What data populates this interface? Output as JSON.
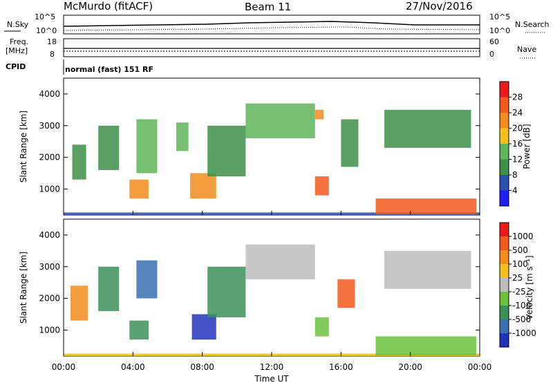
{
  "header": {
    "station": "McMurdo (fitACF)",
    "beam": "Beam 11",
    "date": "27/Nov/2016"
  },
  "summary_panels": {
    "nsky_label": "N.Sky",
    "nsearch_label": "N.Search",
    "noise_ticks_left": [
      "10^5",
      "10^0"
    ],
    "noise_ticks_right": [
      "10^5",
      "10^0"
    ],
    "freq_label_line1": "Freq.",
    "freq_label_line2": "[MHz]",
    "freq_ticks": [
      "18",
      "8"
    ],
    "nave_label": "Nave",
    "nave_ticks": [
      "60",
      "0"
    ],
    "cpid_label": "CPID",
    "cpid_text": "normal (fast) 151 RF"
  },
  "chart_data": [
    {
      "type": "heatmap",
      "name": "power",
      "ylabel": "Slant Range [km]",
      "xlabel": "Time UT",
      "x_ticks": [
        "00:00",
        "04:00",
        "08:00",
        "12:00",
        "16:00",
        "20:00",
        "00:00"
      ],
      "xlim": [
        0,
        24
      ],
      "ylim": [
        180,
        4500
      ],
      "y_ticks": [
        1000,
        2000,
        3000,
        4000
      ],
      "colorbar": {
        "label": "Power [dB]",
        "ticks": [
          "4",
          "8",
          "12",
          "16",
          "20",
          "24",
          "28"
        ],
        "colors": [
          "#1f1ff2",
          "#2d4fb0",
          "#3d8f4a",
          "#5fb55a",
          "#f2c21c",
          "#f28c1c",
          "#f2591c",
          "#e81a1a"
        ]
      },
      "regions": [
        {
          "t0": 0.0,
          "t1": 24.0,
          "r0": 180,
          "r1": 260,
          "level": 1
        },
        {
          "t0": 0.5,
          "t1": 1.3,
          "r0": 1300,
          "r1": 2400,
          "level": 2
        },
        {
          "t0": 2.0,
          "t1": 3.2,
          "r0": 1600,
          "r1": 3000,
          "level": 2
        },
        {
          "t0": 3.8,
          "t1": 4.9,
          "r0": 700,
          "r1": 1300,
          "level": 5
        },
        {
          "t0": 4.2,
          "t1": 5.4,
          "r0": 1500,
          "r1": 3200,
          "level": 3
        },
        {
          "t0": 6.5,
          "t1": 7.2,
          "r0": 2200,
          "r1": 3100,
          "level": 3
        },
        {
          "t0": 7.3,
          "t1": 8.8,
          "r0": 700,
          "r1": 1500,
          "level": 5
        },
        {
          "t0": 8.3,
          "t1": 10.5,
          "r0": 1400,
          "r1": 3000,
          "level": 2
        },
        {
          "t0": 10.5,
          "t1": 14.5,
          "r0": 2600,
          "r1": 3700,
          "level": 3
        },
        {
          "t0": 14.5,
          "t1": 15.3,
          "r0": 800,
          "r1": 1400,
          "level": 6
        },
        {
          "t0": 14.5,
          "t1": 15.0,
          "r0": 3200,
          "r1": 3500,
          "level": 5
        },
        {
          "t0": 16.0,
          "t1": 17.0,
          "r0": 1700,
          "r1": 3200,
          "level": 2
        },
        {
          "t0": 18.0,
          "t1": 23.8,
          "r0": 200,
          "r1": 700,
          "level": 6
        },
        {
          "t0": 18.5,
          "t1": 23.5,
          "r0": 2300,
          "r1": 3500,
          "level": 2
        }
      ]
    },
    {
      "type": "heatmap",
      "name": "velocity",
      "ylabel": "Slant Range [km]",
      "xlabel": "Time UT",
      "x_ticks": [
        "00:00",
        "04:00",
        "08:00",
        "12:00",
        "16:00",
        "20:00",
        "00:00"
      ],
      "xlim": [
        0,
        24
      ],
      "ylim": [
        180,
        4500
      ],
      "y_ticks": [
        1000,
        2000,
        3000,
        4000
      ],
      "colorbar": {
        "label": "Velocity [m s⁻¹]",
        "ticks": [
          "1000",
          "500",
          "100",
          "25",
          "-25",
          "-100",
          "-500",
          "-1000"
        ],
        "colors": [
          "#2233bb",
          "#3a6fb0",
          "#3d8f5a",
          "#6ac23c",
          "#bdbdbd",
          "#f2c21c",
          "#f28c1c",
          "#f25a1c",
          "#e81a1a"
        ]
      },
      "regions": [
        {
          "t0": 0.0,
          "t1": 24.0,
          "r0": 180,
          "r1": 260,
          "level": 5
        },
        {
          "t0": 0.4,
          "t1": 1.4,
          "r0": 1300,
          "r1": 2400,
          "level": 6
        },
        {
          "t0": 2.0,
          "t1": 3.2,
          "r0": 1600,
          "r1": 3000,
          "level": 2
        },
        {
          "t0": 3.8,
          "t1": 4.9,
          "r0": 700,
          "r1": 1300,
          "level": 2
        },
        {
          "t0": 4.2,
          "t1": 5.4,
          "r0": 2000,
          "r1": 3200,
          "level": 1
        },
        {
          "t0": 7.4,
          "t1": 8.8,
          "r0": 700,
          "r1": 1500,
          "level": 0
        },
        {
          "t0": 8.3,
          "t1": 10.5,
          "r0": 1400,
          "r1": 3000,
          "level": 2
        },
        {
          "t0": 10.5,
          "t1": 14.5,
          "r0": 2600,
          "r1": 3700,
          "level": 4
        },
        {
          "t0": 14.5,
          "t1": 15.3,
          "r0": 800,
          "r1": 1400,
          "level": 3
        },
        {
          "t0": 15.8,
          "t1": 16.8,
          "r0": 1700,
          "r1": 2600,
          "level": 7
        },
        {
          "t0": 18.0,
          "t1": 23.8,
          "r0": 200,
          "r1": 800,
          "level": 3
        },
        {
          "t0": 18.5,
          "t1": 23.5,
          "r0": 2300,
          "r1": 3500,
          "level": 4
        }
      ]
    }
  ]
}
